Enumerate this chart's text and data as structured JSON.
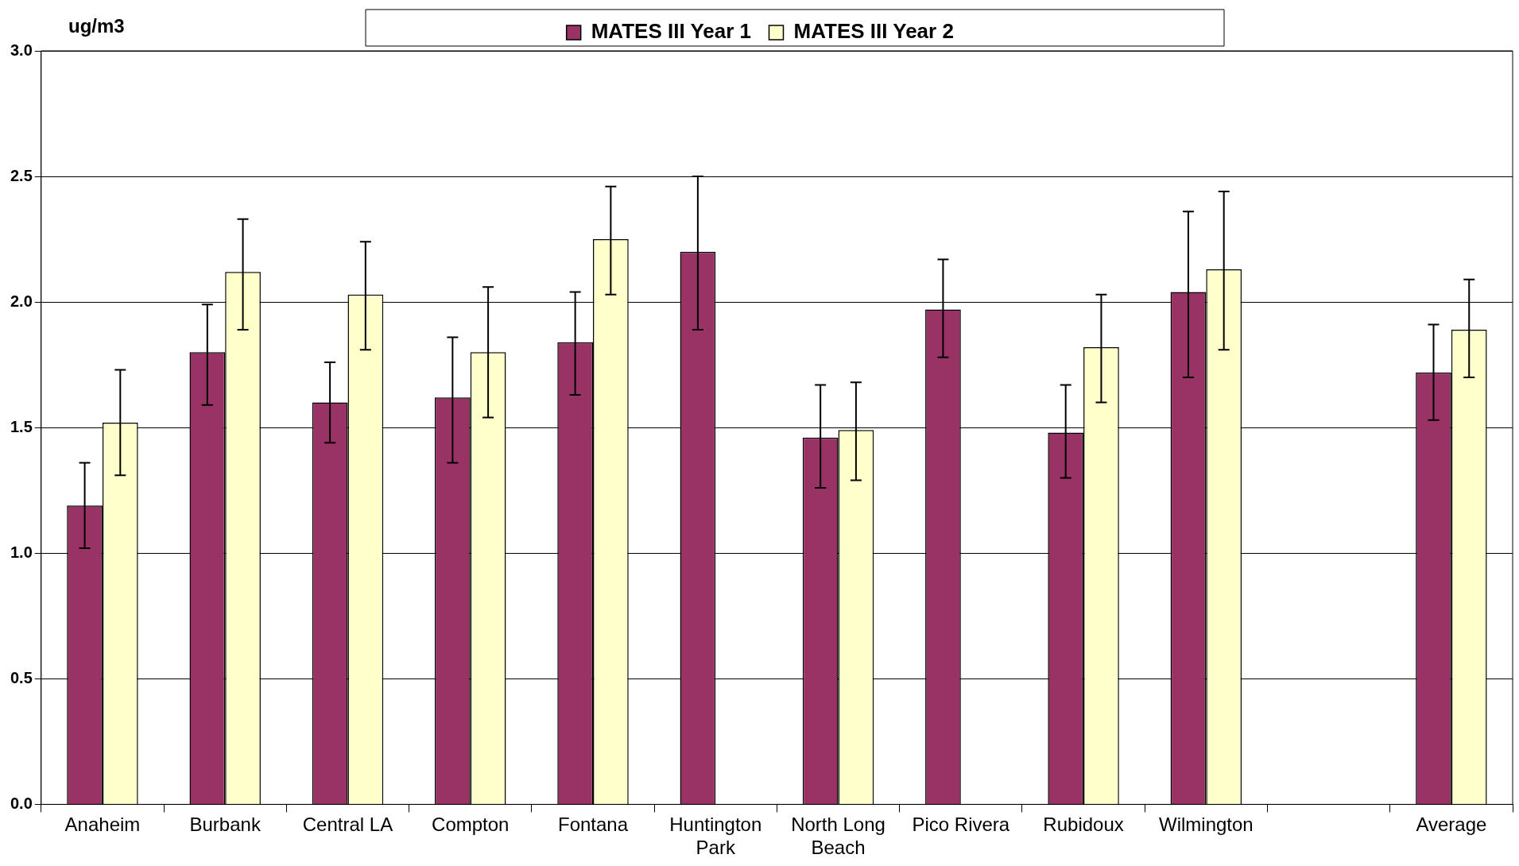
{
  "chart_data": {
    "type": "bar",
    "ylabel": "ug/m3",
    "categories": [
      "Anaheim",
      "Burbank",
      "Central LA",
      "Compton",
      "Fontana",
      "Huntington Park",
      "North Long Beach",
      "Pico Rivera",
      "Rubidoux",
      "Wilmington",
      null,
      "Average"
    ],
    "series": [
      {
        "name": "MATES III Year 1",
        "color": "#993366",
        "values": [
          1.19,
          1.8,
          1.6,
          1.62,
          1.84,
          2.2,
          1.46,
          1.97,
          1.48,
          2.04,
          null,
          1.72
        ],
        "errors": [
          [
            1.02,
            1.36
          ],
          [
            1.59,
            1.99
          ],
          [
            1.44,
            1.76
          ],
          [
            1.36,
            1.86
          ],
          [
            1.63,
            2.04
          ],
          [
            1.89,
            2.5
          ],
          [
            1.26,
            1.67
          ],
          [
            1.78,
            2.17
          ],
          [
            1.3,
            1.67
          ],
          [
            1.7,
            2.36
          ],
          null,
          [
            1.53,
            1.91
          ]
        ]
      },
      {
        "name": "MATES III Year 2",
        "color": "#ffffcc",
        "values": [
          1.52,
          2.12,
          2.03,
          1.8,
          2.25,
          null,
          1.49,
          null,
          1.82,
          2.13,
          null,
          1.89
        ],
        "errors": [
          [
            1.31,
            1.73
          ],
          [
            1.89,
            2.33
          ],
          [
            1.81,
            2.24
          ],
          [
            1.54,
            2.06
          ],
          [
            2.03,
            2.46
          ],
          null,
          [
            1.29,
            1.68
          ],
          null,
          [
            1.6,
            2.03
          ],
          [
            1.81,
            2.44
          ],
          null,
          [
            1.7,
            2.09
          ]
        ]
      }
    ],
    "ylim": [
      0,
      3.0
    ],
    "yticks": [
      {
        "value": 0,
        "label": "0.0"
      },
      {
        "value": 0.5,
        "label": "0.5"
      },
      {
        "value": 1,
        "label": "1.0"
      },
      {
        "value": 1.5,
        "label": "1.5"
      },
      {
        "value": 2,
        "label": "2.0"
      },
      {
        "value": 2.5,
        "label": "2.5"
      },
      {
        "value": 3,
        "label": "3.0"
      }
    ],
    "grid": "y",
    "legend": "top"
  }
}
